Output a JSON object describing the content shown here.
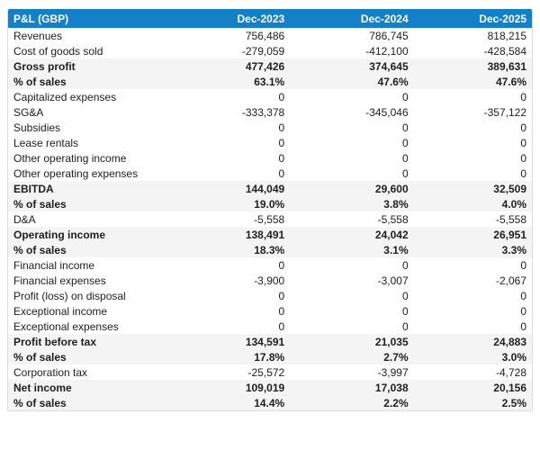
{
  "accent_color": "#1480c8",
  "emphasis_row_color": "#f4f4f4",
  "chart_data": {
    "type": "table",
    "title": "P&L (GBP)",
    "columns": [
      "P&L (GBP)",
      "Dec-2023",
      "Dec-2024",
      "Dec-2025"
    ],
    "rows": [
      {
        "label": "Revenues",
        "values": [
          "756,486",
          "786,745",
          "818,215"
        ],
        "emphasis": false
      },
      {
        "label": "Cost of goods sold",
        "values": [
          "-279,059",
          "-412,100",
          "-428,584"
        ],
        "emphasis": false
      },
      {
        "label": "Gross profit",
        "values": [
          "477,426",
          "374,645",
          "389,631"
        ],
        "emphasis": true
      },
      {
        "label": "% of sales",
        "values": [
          "63.1%",
          "47.6%",
          "47.6%"
        ],
        "emphasis": true
      },
      {
        "label": "Capitalized expenses",
        "values": [
          "0",
          "0",
          "0"
        ],
        "emphasis": false
      },
      {
        "label": "SG&A",
        "values": [
          "-333,378",
          "-345,046",
          "-357,122"
        ],
        "emphasis": false
      },
      {
        "label": "Subsidies",
        "values": [
          "0",
          "0",
          "0"
        ],
        "emphasis": false
      },
      {
        "label": "Lease rentals",
        "values": [
          "0",
          "0",
          "0"
        ],
        "emphasis": false
      },
      {
        "label": "Other operating income",
        "values": [
          "0",
          "0",
          "0"
        ],
        "emphasis": false
      },
      {
        "label": "Other operating expenses",
        "values": [
          "0",
          "0",
          "0"
        ],
        "emphasis": false
      },
      {
        "label": "EBITDA",
        "values": [
          "144,049",
          "29,600",
          "32,509"
        ],
        "emphasis": true
      },
      {
        "label": "% of sales",
        "values": [
          "19.0%",
          "3.8%",
          "4.0%"
        ],
        "emphasis": true
      },
      {
        "label": "D&A",
        "values": [
          "-5,558",
          "-5,558",
          "-5,558"
        ],
        "emphasis": false
      },
      {
        "label": "Operating income",
        "values": [
          "138,491",
          "24,042",
          "26,951"
        ],
        "emphasis": true
      },
      {
        "label": "% of sales",
        "values": [
          "18.3%",
          "3.1%",
          "3.3%"
        ],
        "emphasis": true
      },
      {
        "label": "Financial income",
        "values": [
          "0",
          "0",
          "0"
        ],
        "emphasis": false
      },
      {
        "label": "Financial expenses",
        "values": [
          "-3,900",
          "-3,007",
          "-2,067"
        ],
        "emphasis": false
      },
      {
        "label": "Profit (loss) on disposal",
        "values": [
          "0",
          "0",
          "0"
        ],
        "emphasis": false
      },
      {
        "label": "Exceptional income",
        "values": [
          "0",
          "0",
          "0"
        ],
        "emphasis": false
      },
      {
        "label": "Exceptional expenses",
        "values": [
          "0",
          "0",
          "0"
        ],
        "emphasis": false
      },
      {
        "label": "Profit before tax",
        "values": [
          "134,591",
          "21,035",
          "24,883"
        ],
        "emphasis": true
      },
      {
        "label": "% of sales",
        "values": [
          "17.8%",
          "2.7%",
          "3.0%"
        ],
        "emphasis": true
      },
      {
        "label": "Corporation tax",
        "values": [
          "-25,572",
          "-3,997",
          "-4,728"
        ],
        "emphasis": false
      },
      {
        "label": "Net income",
        "values": [
          "109,019",
          "17,038",
          "20,156"
        ],
        "emphasis": true
      },
      {
        "label": "% of sales",
        "values": [
          "14.4%",
          "2.2%",
          "2.5%"
        ],
        "emphasis": true
      }
    ]
  }
}
